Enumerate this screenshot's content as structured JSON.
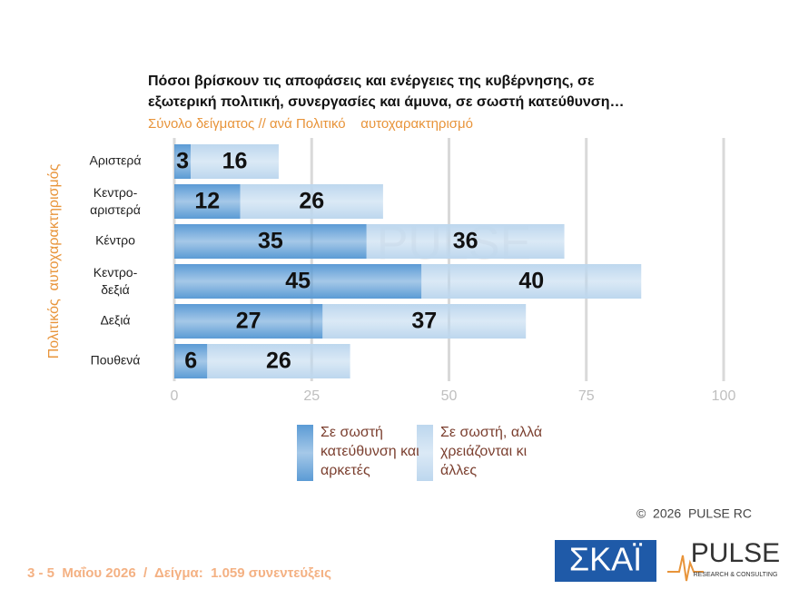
{
  "chart_data": {
    "type": "stacked-barh",
    "title": [
      "Πόσοι βρίσκουν τις αποφάσεις και ενέργειες της κυβέρνησης, σε",
      "εξωτερική πολιτική, συνεργασίες και άμυνα, σε σωστή κατεύθυνση…"
    ],
    "subtitle": "Σύνολο δείγματος // ανά Πολιτικό    αυτοχαρακτηρισμό",
    "y_label": "Πολιτικός  αυτοχαρακτηρισμός",
    "categories": [
      "Αριστερά",
      "Κεντρο-αριστερά",
      "Κέντρο",
      "Κεντρο-δεξιά",
      "Δεξιά",
      "Πουθενά"
    ],
    "series": [
      {
        "name": "Σε σωστή κατεύθυνση και αρκετές",
        "color": "#5b9bd5",
        "values": [
          3,
          12,
          35,
          45,
          27,
          6
        ]
      },
      {
        "name": "Σε σωστή, αλλά χρειά­ζονται κι άλλες",
        "color": "#bdd7ee",
        "values": [
          16,
          26,
          36,
          40,
          37,
          26
        ]
      }
    ],
    "xlim": [
      0,
      100
    ],
    "xticks": [
      0,
      25,
      50,
      75,
      100
    ],
    "grid": true,
    "watermark": "PULSE",
    "copyright": "©  2026  PULSE RC",
    "footer": "3 - 5  Μαΐου 2026  /  Δείγμα:  1.059 συνεντεύξεις",
    "logo_skai": "ΣΚΑΪ",
    "logo_pulse": "PULSE",
    "logo_pulse_sub": "RESEARCH & CONSULTING"
  }
}
